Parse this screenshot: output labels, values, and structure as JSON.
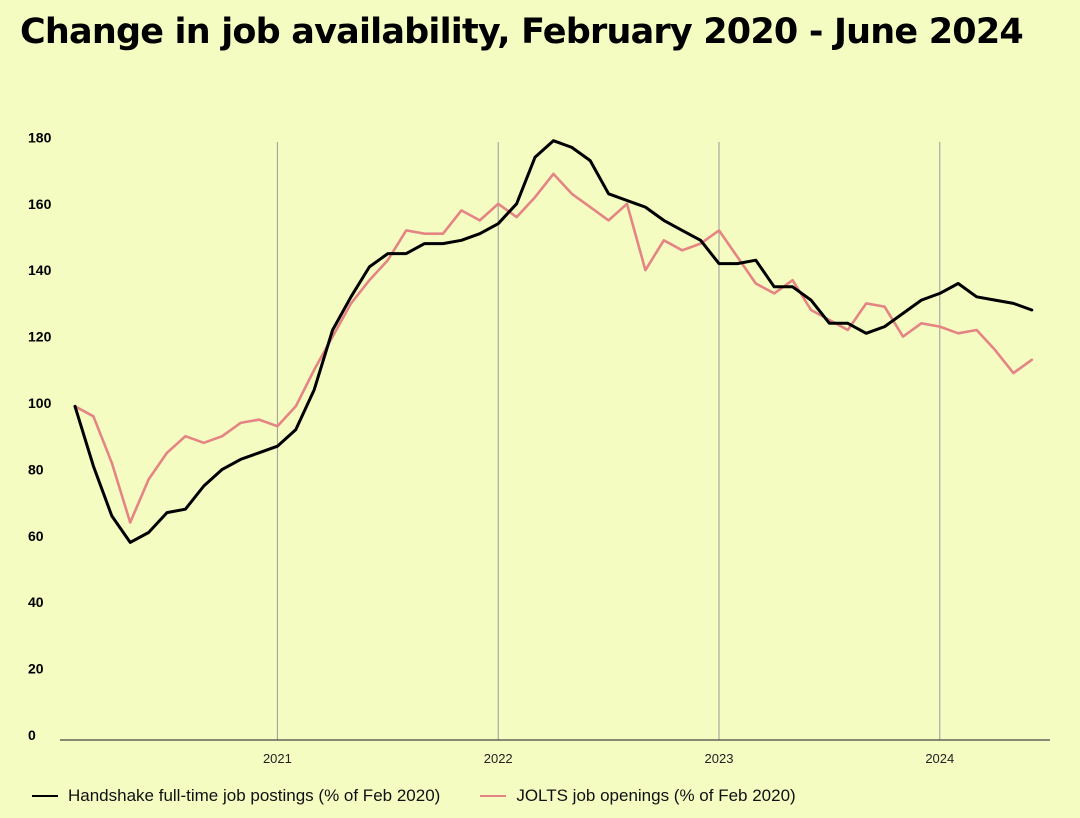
{
  "chart_data": {
    "type": "line",
    "title": "Change in job availability, February 2020 - June 2024",
    "xlabel": "",
    "ylabel": "",
    "ylim": [
      0,
      180
    ],
    "yticks": [
      0,
      20,
      40,
      60,
      80,
      100,
      120,
      140,
      160,
      180
    ],
    "xticks": [
      "2021",
      "2022",
      "2023",
      "2024"
    ],
    "x_range": [
      "2020-02",
      "2024-06"
    ],
    "grid": "vertical year lines",
    "legend_position": "bottom-left",
    "series": [
      {
        "name": "Handshake full-time job postings (% of Feb 2020)",
        "color": "#000000",
        "values": [
          99,
          81,
          66,
          58,
          61,
          67,
          68,
          75,
          80,
          83,
          85,
          87,
          92,
          104,
          122,
          132,
          141,
          145,
          145,
          148,
          148,
          149,
          151,
          154,
          160,
          174,
          179,
          177,
          173,
          163,
          161,
          159,
          155,
          152,
          149,
          142,
          142,
          143,
          135,
          135,
          131,
          124,
          124,
          121,
          123,
          127,
          131,
          133,
          136,
          132,
          131,
          130,
          128
        ]
      },
      {
        "name": "JOLTS job openings (% of Feb 2020)",
        "color": "#e58484",
        "values": [
          99,
          96,
          82,
          64,
          77,
          85,
          90,
          88,
          90,
          94,
          95,
          93,
          99,
          110,
          120,
          130,
          137,
          143,
          152,
          151,
          151,
          158,
          155,
          160,
          156,
          162,
          169,
          163,
          159,
          155,
          160,
          140,
          149,
          146,
          148,
          152,
          144,
          136,
          133,
          137,
          128,
          125,
          122,
          130,
          129,
          120,
          124,
          123,
          121,
          122,
          116,
          109,
          113
        ]
      }
    ]
  }
}
